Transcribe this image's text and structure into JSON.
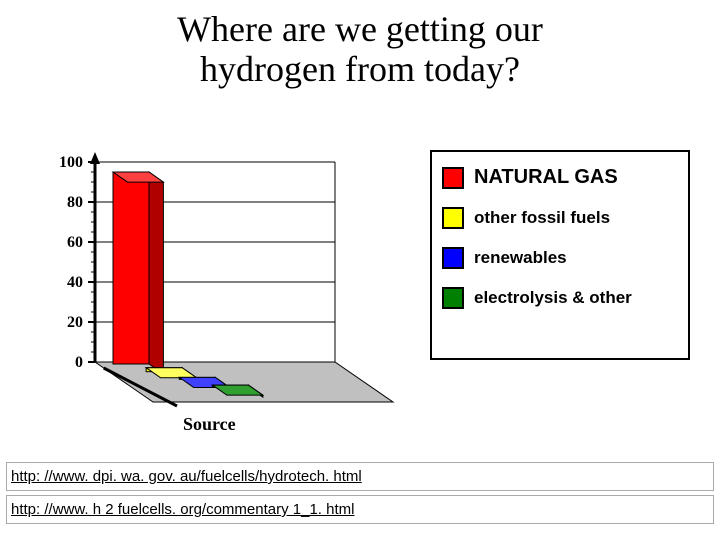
{
  "title_line1": "Where are we getting our",
  "title_line2": "hydrogen from today?",
  "chart": {
    "type": "bar-3d",
    "ylim": [
      0,
      100
    ],
    "ytick_step": 20,
    "ytick_labels": [
      "0",
      "20",
      "40",
      "60",
      "80",
      "100"
    ],
    "xlabel": "Source",
    "background_color": "#ffffff",
    "floor_color": "#c0c0c0",
    "axis_color": "#000000",
    "gridline_color": "#000000",
    "bars": [
      {
        "label": "NATURAL GAS",
        "value": 96,
        "color": "#ff0000",
        "side_color": "#b00000",
        "top_color": "#ff4040"
      },
      {
        "label": "other fossil fuels",
        "value": 2,
        "color": "#ffff00",
        "side_color": "#b0b000",
        "top_color": "#ffff60"
      },
      {
        "label": "renewables",
        "value": 1,
        "color": "#0000ff",
        "side_color": "#000090",
        "top_color": "#4040ff"
      },
      {
        "label": "electrolysis & other",
        "value": 1,
        "color": "#008000",
        "side_color": "#005000",
        "top_color": "#30a030"
      }
    ],
    "font_family": "Times New Roman",
    "axis_label_fontsize": 18,
    "axis_label_fontweight": "bold",
    "tick_fontsize": 16,
    "tick_fontweight": "bold"
  },
  "legend": {
    "border_color": "#000000",
    "items": [
      {
        "label": "NATURAL GAS",
        "color": "#ff0000",
        "big": true
      },
      {
        "label": "other fossil fuels",
        "color": "#ffff00",
        "big": false
      },
      {
        "label": "renewables",
        "color": "#0000ff",
        "big": false
      },
      {
        "label": "electrolysis & other",
        "color": "#008000",
        "big": false
      }
    ]
  },
  "links": [
    "http: //www. dpi. wa. gov. au/fuelcells/hydrotech. html",
    "http: //www. h 2 fuelcells. org/commentary 1_1. html"
  ]
}
